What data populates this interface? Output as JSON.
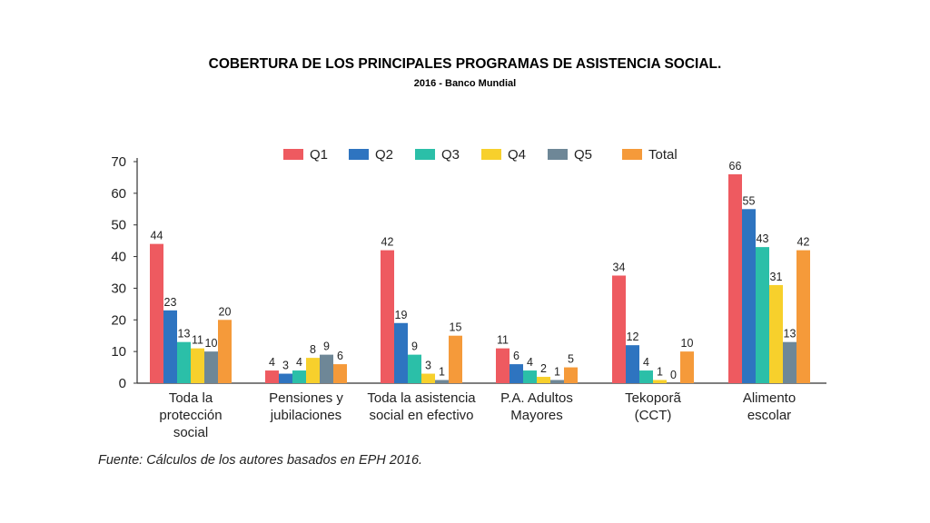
{
  "title": "COBERTURA DE LOS PRINCIPALES PROGRAMAS DE ASISTENCIA SOCIAL.",
  "subtitle": "2016  - Banco Mundial",
  "source": "Fuente: Cálculos de los autores basados en EPH 2016.",
  "chart_data": {
    "type": "bar",
    "categories": [
      [
        "Toda la",
        "protección",
        "social"
      ],
      [
        "Pensiones y",
        "jubilaciones"
      ],
      [
        "Toda la asistencia",
        "social en efectivo"
      ],
      [
        "P.A. Adultos",
        "Mayores"
      ],
      [
        "Tekoporã",
        "(CCT)"
      ],
      [
        "Alimento",
        "escolar"
      ]
    ],
    "series": [
      {
        "name": "Q1",
        "color": "#ee5a60",
        "values": [
          44,
          4,
          42,
          11,
          34,
          66
        ]
      },
      {
        "name": "Q2",
        "color": "#2e74c0",
        "values": [
          23,
          3,
          19,
          6,
          12,
          55
        ]
      },
      {
        "name": "Q3",
        "color": "#2bbfa8",
        "values": [
          13,
          4,
          9,
          4,
          4,
          43
        ]
      },
      {
        "name": "Q4",
        "color": "#f7d02c",
        "values": [
          11,
          8,
          3,
          2,
          1,
          31
        ]
      },
      {
        "name": "Q5",
        "color": "#6e8797",
        "values": [
          10,
          9,
          1,
          1,
          0,
          13
        ]
      },
      {
        "name": "Total",
        "color": "#f59a3a",
        "values": [
          20,
          6,
          15,
          5,
          10,
          42
        ]
      }
    ],
    "ylim": [
      0,
      70
    ],
    "yticks": [
      0,
      10,
      20,
      30,
      40,
      50,
      60,
      70
    ],
    "legend_position": "top",
    "grid": false
  }
}
